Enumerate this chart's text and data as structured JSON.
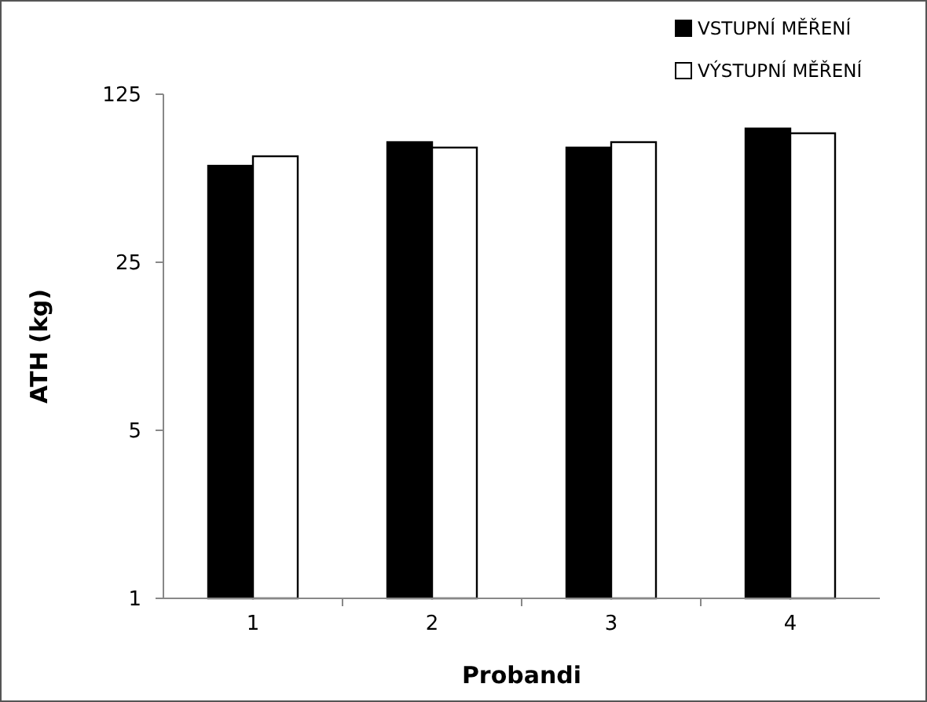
{
  "chart_data": {
    "type": "bar",
    "xlabel": "Probandi",
    "ylabel": "ATH (kg)",
    "categories": [
      "1",
      "2",
      "3",
      "4"
    ],
    "series": [
      {
        "name": "VSTUPNÍ MĚŘENÍ",
        "color": "#000000",
        "values": [
          63,
          79,
          75,
          90
        ]
      },
      {
        "name": "VÝSTUPNÍ MĚŘENÍ",
        "color": "#ffffff",
        "values": [
          69,
          75,
          79,
          86
        ]
      }
    ],
    "log": "y",
    "ylim": [
      1,
      125
    ],
    "yticks": [
      1,
      5,
      25,
      125
    ],
    "grid": false,
    "legend": "top right"
  }
}
